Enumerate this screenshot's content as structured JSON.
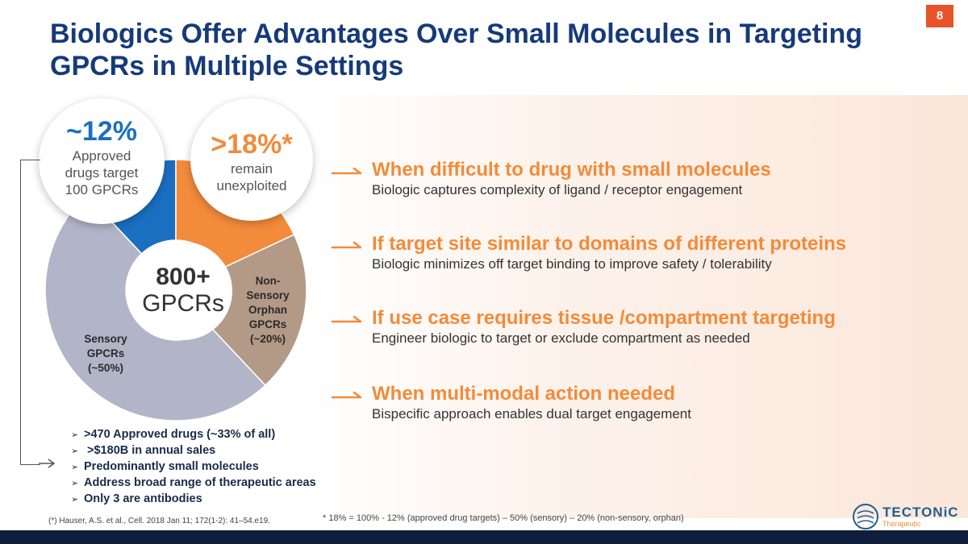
{
  "page": {
    "number": "8"
  },
  "title": {
    "line1": "Biologics Offer Advantages Over Small Molecules in Targeting",
    "line2": "GPCRs in Multiple Settings"
  },
  "colors": {
    "title": "#163a7a",
    "accent_orange": "#f28b3a",
    "page_badge": "#e8532a",
    "blue_segment": "#1a6fc0",
    "orange_segment": "#f28b3a",
    "nonsensory_segment": "#b39a87",
    "sensory_segment": "#b2b5c8",
    "footer_bar": "#0f1e3a"
  },
  "donut": {
    "center": {
      "number": "800+",
      "label": "GPCRs"
    },
    "segments": [
      {
        "name": "approved",
        "value": 12,
        "color": "#1a6fc0"
      },
      {
        "name": "unexploited",
        "value": 18,
        "color": "#f28b3a"
      },
      {
        "name": "non-sensory-orphan",
        "value": 20,
        "color": "#b39a87"
      },
      {
        "name": "sensory",
        "value": 50,
        "color": "#b2b5c8"
      }
    ],
    "bubble_approved": {
      "pct": "~12%",
      "line1": "Approved",
      "line2": "drugs target",
      "line3": "100 GPCRs"
    },
    "bubble_unexploited": {
      "pct": ">18%*",
      "line1": "remain",
      "line2": "unexploited"
    },
    "label_nonsensory": [
      "Non-",
      "Sensory",
      "Orphan",
      "GPCRs",
      "(~20%)"
    ],
    "label_sensory": [
      "Sensory",
      "GPCRs",
      "(~50%)"
    ]
  },
  "bullets": {
    "marker": "➢",
    "items": [
      ">470 Approved drugs (~33% of all)",
      " >$180B in annual sales",
      "Predominantly small molecules",
      "Address broad range of therapeutic areas",
      "Only 3 are antibodies"
    ]
  },
  "advantages": [
    {
      "heading": "When difficult to drug with small molecules",
      "detail": "Biologic captures complexity of ligand / receptor engagement"
    },
    {
      "heading": "If target site similar to domains of different proteins",
      "detail": "Biologic minimizes off target binding to improve safety / tolerability"
    },
    {
      "heading": "If use case requires tissue /compartment targeting",
      "detail": "Engineer biologic to target or exclude compartment as needed"
    },
    {
      "heading": "When multi-modal action needed",
      "detail": "Bispecific approach enables dual target engagement"
    }
  ],
  "footnotes": {
    "left": "(*) Hauser, A.S. et al., Cell. 2018 Jan 11; 172(1-2): 41–54.e19.",
    "right": "* 18% = 100% - 12% (approved drug targets) – 50% (sensory) – 20% (non-sensory, orphan)"
  },
  "logo": {
    "name": "TECTONiC",
    "sub": "Therapeutic"
  }
}
